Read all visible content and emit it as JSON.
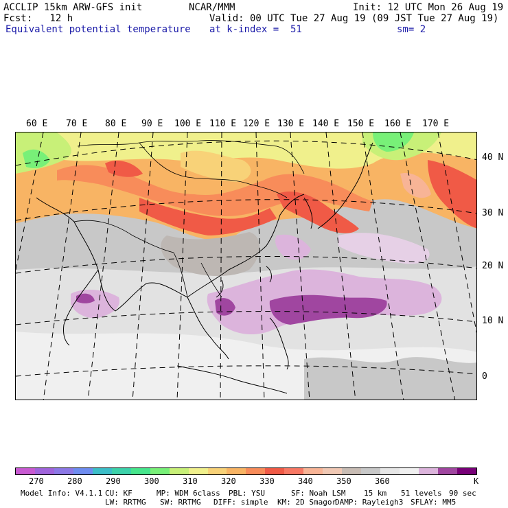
{
  "header": {
    "line1_left": "ACCLIP 15km ARW-GFS init",
    "line1_center": "NCAR/MMM",
    "line1_right": "Init: 12 UTC Mon 26 Aug 19",
    "line2_left": "Fcst:   12 h",
    "line2_right": "Valid: 00 UTC Tue 27 Aug 19 (09 JST Tue 27 Aug 19)",
    "line3_left": "Equivalent potential temperature",
    "line3_center": "at k-index =  51",
    "line3_right": "sm= 2"
  },
  "map": {
    "longitude_labels": [
      "60 E",
      "70 E",
      "80 E",
      "90 E",
      "100 E",
      "110 E",
      "120 E",
      "130 E",
      "140 E",
      "150 E",
      "160 E",
      "170 E"
    ],
    "latitude_labels": [
      "40 N",
      "30 N",
      "20 N",
      "10 N",
      "0"
    ]
  },
  "colorbar": {
    "colors": [
      "#c85ad2",
      "#a064dc",
      "#8c78e6",
      "#6e8cf0",
      "#3cbec8",
      "#3cd2aa",
      "#46e68c",
      "#78f078",
      "#c8f078",
      "#f0f08c",
      "#f8d278",
      "#f8b464",
      "#f88c5a",
      "#f05a46",
      "#f87864",
      "#f8b496",
      "#f0c8b4",
      "#c8bcb4",
      "#c8c8c8",
      "#e6e6e6",
      "#f0f0f0",
      "#dcb4dc",
      "#a046a0",
      "#780078"
    ],
    "labels": [
      "270",
      "280",
      "290",
      "300",
      "310",
      "320",
      "330",
      "340",
      "350",
      "360"
    ],
    "units": "K"
  },
  "footer": {
    "line1": [
      "Model Info: V4.1.1",
      "CU: KF",
      "MP: WDM 6class",
      "PBL: YSU",
      "SF: Noah LSM",
      "15 km",
      "51 levels",
      "90 sec"
    ],
    "line2": [
      "LW: RRTMG",
      "SW: RRTMG",
      "DIFF: simple",
      "KM: 2D Smagor",
      "DAMP: Rayleigh3",
      "SFLAY: MM5"
    ]
  }
}
